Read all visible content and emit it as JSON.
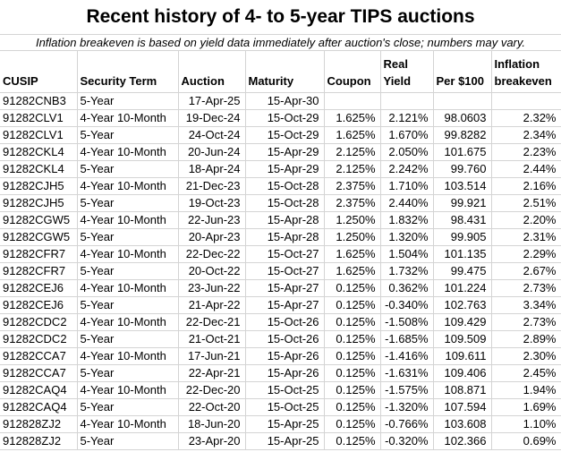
{
  "title": "Recent history of 4- to 5-year TIPS auctions",
  "subtitle": "Inflation breakeven is based on yield data immediately after auction's close; numbers may vary.",
  "colors": {
    "gridline": "#d4d4d4",
    "text": "#000000",
    "background": "#ffffff"
  },
  "table": {
    "headers": [
      "CUSIP",
      "Security Term",
      "Auction",
      "Maturity",
      "Coupon",
      "Real Yield",
      "Per $100",
      "Inflation breakeven"
    ],
    "column_keys": [
      "cusip",
      "security-term",
      "auction",
      "maturity",
      "coupon",
      "real-yield",
      "per-100",
      "inflation-breakeven"
    ],
    "column_aligns": [
      "left",
      "left",
      "right",
      "right",
      "right",
      "right",
      "right",
      "right"
    ],
    "rows": [
      [
        "91282CNB3",
        "5-Year",
        "17-Apr-25",
        "15-Apr-30",
        "",
        "",
        "",
        ""
      ],
      [
        "91282CLV1",
        "4-Year 10-Month",
        "19-Dec-24",
        "15-Oct-29",
        "1.625%",
        "2.121%",
        "98.0603",
        "2.32%"
      ],
      [
        "91282CLV1",
        "5-Year",
        "24-Oct-24",
        "15-Oct-29",
        "1.625%",
        "1.670%",
        "99.8282",
        "2.34%"
      ],
      [
        "91282CKL4",
        "4-Year 10-Month",
        "20-Jun-24",
        "15-Apr-29",
        "2.125%",
        "2.050%",
        "101.675",
        "2.23%"
      ],
      [
        "91282CKL4",
        "5-Year",
        "18-Apr-24",
        "15-Apr-29",
        "2.125%",
        "2.242%",
        "99.760",
        "2.44%"
      ],
      [
        "91282CJH5",
        "4-Year 10-Month",
        "21-Dec-23",
        "15-Oct-28",
        "2.375%",
        "1.710%",
        "103.514",
        "2.16%"
      ],
      [
        "91282CJH5",
        "5-Year",
        "19-Oct-23",
        "15-Oct-28",
        "2.375%",
        "2.440%",
        "99.921",
        "2.51%"
      ],
      [
        "91282CGW5",
        "4-Year 10-Month",
        "22-Jun-23",
        "15-Apr-28",
        "1.250%",
        "1.832%",
        "98.431",
        "2.20%"
      ],
      [
        "91282CGW5",
        "5-Year",
        "20-Apr-23",
        "15-Apr-28",
        "1.250%",
        "1.320%",
        "99.905",
        "2.31%"
      ],
      [
        "91282CFR7",
        "4-Year 10-Month",
        "22-Dec-22",
        "15-Oct-27",
        "1.625%",
        "1.504%",
        "101.135",
        "2.29%"
      ],
      [
        "91282CFR7",
        "5-Year",
        "20-Oct-22",
        "15-Oct-27",
        "1.625%",
        "1.732%",
        "99.475",
        "2.67%"
      ],
      [
        "91282CEJ6",
        "4-Year 10-Month",
        "23-Jun-22",
        "15-Apr-27",
        "0.125%",
        "0.362%",
        "101.224",
        "2.73%"
      ],
      [
        "91282CEJ6",
        "5-Year",
        "21-Apr-22",
        "15-Apr-27",
        "0.125%",
        "-0.340%",
        "102.763",
        "3.34%"
      ],
      [
        "91282CDC2",
        "4-Year 10-Month",
        "22-Dec-21",
        "15-Oct-26",
        "0.125%",
        "-1.508%",
        "109.429",
        "2.73%"
      ],
      [
        "91282CDC2",
        "5-Year",
        "21-Oct-21",
        "15-Oct-26",
        "0.125%",
        "-1.685%",
        "109.509",
        "2.89%"
      ],
      [
        "91282CCA7",
        "4-Year 10-Month",
        "17-Jun-21",
        "15-Apr-26",
        "0.125%",
        "-1.416%",
        "109.611",
        "2.30%"
      ],
      [
        "91282CCA7",
        "5-Year",
        "22-Apr-21",
        "15-Apr-26",
        "0.125%",
        "-1.631%",
        "109.406",
        "2.45%"
      ],
      [
        "91282CAQ4",
        "4-Year 10-Month",
        "22-Dec-20",
        "15-Oct-25",
        "0.125%",
        "-1.575%",
        "108.871",
        "1.94%"
      ],
      [
        "91282CAQ4",
        "5-Year",
        "22-Oct-20",
        "15-Oct-25",
        "0.125%",
        "-1.320%",
        "107.594",
        "1.69%"
      ],
      [
        "912828ZJ2",
        "4-Year 10-Month",
        "18-Jun-20",
        "15-Apr-25",
        "0.125%",
        "-0.766%",
        "103.608",
        "1.10%"
      ],
      [
        "912828ZJ2",
        "5-Year",
        "23-Apr-20",
        "15-Apr-25",
        "0.125%",
        "-0.320%",
        "102.366",
        "0.69%"
      ]
    ]
  }
}
